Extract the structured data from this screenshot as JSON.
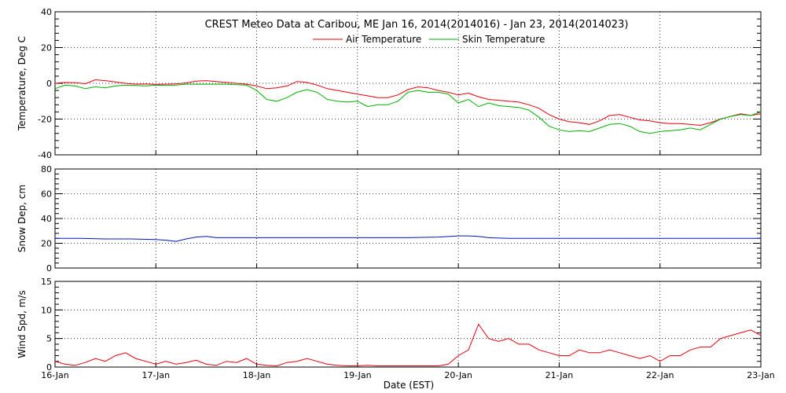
{
  "chart_data": {
    "title": "CREST Meteo Data at Caribou, ME   Jan 16, 2014(2014016) - Jan 23, 2014(2014023)",
    "xlabel": "Date (EST)",
    "x_ticks": [
      "16-Jan",
      "17-Jan",
      "18-Jan",
      "19-Jan",
      "20-Jan",
      "21-Jan",
      "22-Jan",
      "23-Jan"
    ],
    "xlim": [
      16,
      23
    ],
    "grid": true,
    "legend_placement": "top-center",
    "panels": [
      {
        "type": "line",
        "ylabel": "Temperature, Deg C",
        "ylim": [
          -40,
          40
        ],
        "yticks": [
          "-40",
          "-20",
          "0",
          "20",
          "40"
        ],
        "series": [
          {
            "name": "Air Temperature",
            "color": "#e8000b",
            "x": [
              16.0,
              16.1,
              16.2,
              16.3,
              16.4,
              16.5,
              16.6,
              16.7,
              16.8,
              16.9,
              17.0,
              17.1,
              17.2,
              17.3,
              17.4,
              17.5,
              17.6,
              17.7,
              17.8,
              17.9,
              18.0,
              18.1,
              18.2,
              18.3,
              18.4,
              18.5,
              18.6,
              18.7,
              18.8,
              18.9,
              19.0,
              19.1,
              19.2,
              19.3,
              19.4,
              19.5,
              19.6,
              19.7,
              19.8,
              19.9,
              20.0,
              20.1,
              20.2,
              20.3,
              20.4,
              20.5,
              20.6,
              20.7,
              20.8,
              20.9,
              21.0,
              21.1,
              21.2,
              21.3,
              21.4,
              21.5,
              21.6,
              21.7,
              21.8,
              21.9,
              22.0,
              22.1,
              22.2,
              22.3,
              22.4,
              22.5,
              22.6,
              22.7,
              22.8,
              22.9,
              23.0
            ],
            "values": [
              0.0,
              0.5,
              0.3,
              -0.2,
              2.0,
              1.5,
              0.8,
              0.0,
              -0.5,
              -0.4,
              -0.6,
              -0.5,
              -0.3,
              0.2,
              1.2,
              1.5,
              1.0,
              0.5,
              0.0,
              -0.5,
              -1.5,
              -3.0,
              -2.5,
              -1.5,
              1.0,
              0.5,
              -1.0,
              -3.0,
              -4.0,
              -5.0,
              -6.0,
              -7.0,
              -8.0,
              -8.0,
              -6.5,
              -3.5,
              -2.0,
              -2.5,
              -4.0,
              -5.0,
              -6.5,
              -5.5,
              -7.5,
              -9.0,
              -9.5,
              -10.0,
              -10.5,
              -12.0,
              -14.0,
              -17.5,
              -20.0,
              -21.5,
              -22.0,
              -23.0,
              -21.0,
              -18.0,
              -17.5,
              -19.0,
              -20.5,
              -21.0,
              -22.0,
              -22.5,
              -22.5,
              -23.0,
              -23.5,
              -22.0,
              -20.0,
              -18.5,
              -17.0,
              -18.0,
              -17.0
            ]
          },
          {
            "name": "Skin Temperature",
            "color": "#00b000",
            "x": [
              16.0,
              16.1,
              16.2,
              16.3,
              16.4,
              16.5,
              16.6,
              16.7,
              16.8,
              16.9,
              17.0,
              17.1,
              17.2,
              17.3,
              17.4,
              17.5,
              17.6,
              17.7,
              17.8,
              17.9,
              18.0,
              18.1,
              18.2,
              18.3,
              18.4,
              18.5,
              18.6,
              18.7,
              18.8,
              18.9,
              19.0,
              19.1,
              19.2,
              19.3,
              19.4,
              19.5,
              19.6,
              19.7,
              19.8,
              19.9,
              20.0,
              20.1,
              20.2,
              20.3,
              20.4,
              20.5,
              20.6,
              20.7,
              20.8,
              20.9,
              21.0,
              21.1,
              21.2,
              21.3,
              21.4,
              21.5,
              21.6,
              21.7,
              21.8,
              21.9,
              22.0,
              22.1,
              22.2,
              22.3,
              22.4,
              22.5,
              22.6,
              22.7,
              22.8,
              22.9,
              23.0
            ],
            "values": [
              -3.0,
              -1.0,
              -1.5,
              -3.0,
              -2.0,
              -2.5,
              -1.5,
              -1.0,
              -1.2,
              -1.5,
              -1.0,
              -1.2,
              -1.0,
              -0.5,
              -0.5,
              -0.5,
              -0.5,
              -0.5,
              -0.8,
              -1.0,
              -4.0,
              -9.0,
              -10.0,
              -8.0,
              -5.0,
              -3.5,
              -5.0,
              -9.0,
              -10.0,
              -10.5,
              -10.0,
              -13.0,
              -12.0,
              -12.0,
              -10.0,
              -5.0,
              -4.0,
              -5.0,
              -5.0,
              -6.0,
              -11.0,
              -9.0,
              -13.0,
              -11.0,
              -12.5,
              -13.0,
              -13.5,
              -15.0,
              -19.0,
              -24.0,
              -26.0,
              -27.0,
              -26.5,
              -27.0,
              -25.0,
              -23.0,
              -22.5,
              -24.0,
              -27.0,
              -28.0,
              -27.0,
              -26.5,
              -26.0,
              -25.0,
              -26.0,
              -23.0,
              -20.0,
              -18.5,
              -17.5,
              -18.0,
              -16.0
            ]
          }
        ]
      },
      {
        "type": "line",
        "ylabel": "Snow Dep, cm",
        "ylim": [
          0,
          80
        ],
        "yticks": [
          "0",
          "20",
          "40",
          "60",
          "80"
        ],
        "series": [
          {
            "color": "#0018b8",
            "x": [
              16.0,
              16.25,
              16.5,
              16.75,
              17.0,
              17.1,
              17.2,
              17.3,
              17.4,
              17.5,
              17.6,
              17.75,
              18.0,
              18.5,
              19.0,
              19.5,
              19.8,
              20.0,
              20.1,
              20.2,
              20.3,
              20.5,
              21.0,
              21.5,
              22.0,
              22.5,
              23.0
            ],
            "values": [
              24,
              24,
              23.5,
              23.5,
              23,
              22.5,
              21.5,
              23.5,
              25,
              25.5,
              24.5,
              24.5,
              24.5,
              24.5,
              24.5,
              24.5,
              25,
              26,
              26,
              25.5,
              24.5,
              24,
              24,
              24,
              24,
              24,
              24
            ]
          }
        ]
      },
      {
        "type": "line",
        "ylabel": "Wind Spd, m/s",
        "ylim": [
          0,
          15
        ],
        "yticks": [
          "0",
          "5",
          "10",
          "15"
        ],
        "series": [
          {
            "color": "#e8000b",
            "x": [
              16.0,
              16.1,
              16.2,
              16.3,
              16.4,
              16.5,
              16.6,
              16.7,
              16.8,
              16.9,
              17.0,
              17.1,
              17.2,
              17.3,
              17.4,
              17.5,
              17.6,
              17.7,
              17.8,
              17.9,
              18.0,
              18.1,
              18.2,
              18.3,
              18.4,
              18.5,
              18.6,
              18.7,
              18.8,
              18.9,
              19.0,
              19.1,
              19.2,
              19.3,
              19.4,
              19.5,
              19.6,
              19.7,
              19.8,
              19.9,
              20.0,
              20.1,
              20.2,
              20.3,
              20.4,
              20.5,
              20.6,
              20.7,
              20.8,
              20.9,
              21.0,
              21.1,
              21.2,
              21.3,
              21.4,
              21.5,
              21.6,
              21.7,
              21.8,
              21.9,
              22.0,
              22.1,
              22.2,
              22.3,
              22.4,
              22.5,
              22.6,
              22.7,
              22.8,
              22.9,
              23.0
            ],
            "values": [
              1.0,
              0.5,
              0.3,
              0.8,
              1.5,
              1.0,
              2.0,
              2.5,
              1.5,
              1.0,
              0.5,
              1.0,
              0.5,
              0.8,
              1.2,
              0.5,
              0.3,
              1.0,
              0.8,
              1.5,
              0.5,
              0.3,
              0.2,
              0.8,
              1.0,
              1.5,
              1.0,
              0.5,
              0.3,
              0.2,
              0.2,
              0.3,
              0.2,
              0.2,
              0.2,
              0.2,
              0.2,
              0.2,
              0.2,
              0.5,
              2.0,
              3.0,
              7.5,
              5.0,
              4.5,
              5.0,
              4.0,
              4.0,
              3.0,
              2.5,
              2.0,
              2.0,
              3.0,
              2.5,
              2.5,
              3.0,
              2.5,
              2.0,
              1.5,
              2.0,
              1.0,
              2.0,
              2.0,
              3.0,
              3.5,
              3.5,
              5.0,
              5.5,
              6.0,
              6.5,
              5.5
            ]
          }
        ]
      }
    ]
  }
}
